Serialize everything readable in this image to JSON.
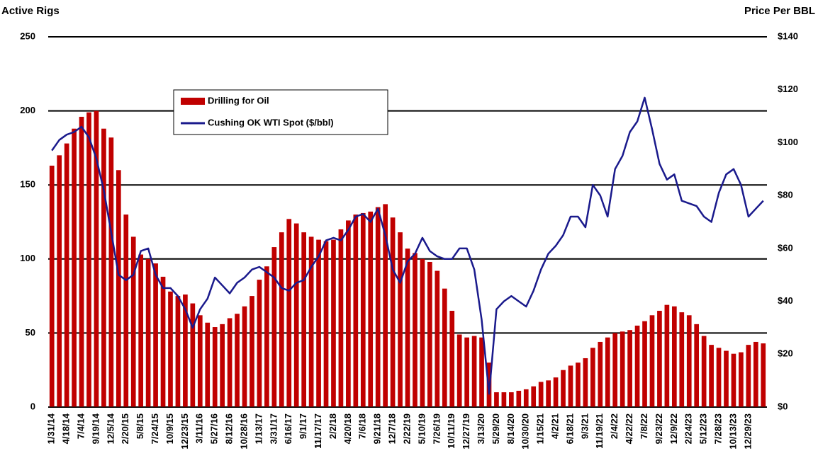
{
  "chart_data": {
    "type": "bar",
    "y_title": "Active Rigs",
    "y2_title": "Price Per BBL",
    "categories": [
      "1/31/14",
      null,
      "4/18/14",
      null,
      "7/4/14",
      null,
      "9/19/14",
      null,
      "12/5/14",
      null,
      "2/20/15",
      null,
      "5/8/15",
      null,
      "7/24/15",
      null,
      "10/9/15",
      null,
      "12/23/15",
      null,
      "3/11/16",
      null,
      "5/27/16",
      null,
      "8/12/16",
      null,
      "10/28/16",
      null,
      "1/13/17",
      null,
      "3/31/17",
      null,
      "6/16/17",
      null,
      "9/1/17",
      null,
      "11/17/17",
      null,
      "2/2/18",
      null,
      "4/20/18",
      null,
      "7/6/18",
      null,
      "9/21/18",
      null,
      "12/7/18",
      null,
      "2/22/19",
      null,
      "5/10/19",
      null,
      "7/26/19",
      null,
      "10/11/19",
      null,
      "12/27/19",
      null,
      "3/13/20",
      null,
      "5/29/20",
      null,
      "8/14/20",
      null,
      "10/30/20",
      null,
      "1/15/21",
      null,
      "4/2/21",
      null,
      "6/18/21",
      null,
      "9/3/21",
      null,
      "11/19/21",
      null,
      "2/4/22",
      null,
      "4/22/22",
      null,
      "7/8/22",
      null,
      "9/23/22",
      null,
      "12/9/22",
      null,
      "2/24/23",
      null,
      "5/12/23",
      null,
      "7/28/23",
      null,
      "10/13/23",
      null,
      "12/29/23",
      null,
      null
    ],
    "series": [
      {
        "name": "Drilling for Oil",
        "color": "#c00000",
        "type": "bar",
        "values": [
          163,
          170,
          178,
          188,
          196,
          199,
          200,
          188,
          182,
          160,
          130,
          115,
          103,
          100,
          97,
          88,
          78,
          75,
          76,
          70,
          62,
          57,
          54,
          56,
          60,
          63,
          68,
          75,
          86,
          95,
          108,
          118,
          127,
          124,
          118,
          115,
          113,
          112,
          113,
          120,
          126,
          130,
          131,
          132,
          135,
          137,
          128,
          118,
          107,
          104,
          100,
          98,
          92,
          80,
          65,
          49,
          47,
          48,
          47,
          30,
          10,
          10,
          10,
          11,
          12,
          14,
          17,
          18,
          20,
          25,
          28,
          30,
          33,
          40,
          44,
          47,
          50,
          51,
          52,
          55,
          58,
          62,
          65,
          69,
          68,
          64,
          62,
          56,
          48,
          42,
          40,
          38,
          36,
          37,
          42,
          44,
          43
        ]
      },
      {
        "name": "Cushing OK WTI Spot ($/bbl)",
        "color": "#1a1a8c",
        "type": "line",
        "axis": "y2",
        "values": [
          97,
          101,
          103,
          104,
          106,
          102,
          94,
          82,
          66,
          50,
          48,
          50,
          59,
          60,
          50,
          45,
          45,
          42,
          37,
          30,
          37,
          41,
          49,
          46,
          43,
          47,
          49,
          52,
          53,
          51,
          49,
          45,
          44,
          47,
          48,
          53,
          57,
          63,
          64,
          63,
          67,
          72,
          73,
          70,
          75,
          65,
          52,
          47,
          55,
          58,
          64,
          59,
          57,
          56,
          56,
          60,
          60,
          52,
          33,
          5,
          37,
          40,
          42,
          40,
          38,
          44,
          52,
          58,
          61,
          65,
          72,
          72,
          68,
          84,
          80,
          72,
          90,
          95,
          104,
          108,
          117,
          105,
          92,
          86,
          88,
          78,
          77,
          76,
          72,
          70,
          81,
          88,
          90,
          84,
          72,
          75,
          78
        ]
      }
    ],
    "ylim": [
      0,
      250
    ],
    "yticks": [
      0,
      50,
      100,
      150,
      200,
      250
    ],
    "y2lim": [
      0,
      140
    ],
    "y2ticks": [
      {
        "value": 0,
        "label": "$0"
      },
      {
        "value": 20,
        "label": "$20"
      },
      {
        "value": 40,
        "label": "$40"
      },
      {
        "value": 60,
        "label": "$60"
      },
      {
        "value": 80,
        "label": "$80"
      },
      {
        "value": 100,
        "label": "$100"
      },
      {
        "value": 120,
        "label": "$120"
      },
      {
        "value": 140,
        "label": "$140"
      }
    ],
    "grid": true
  }
}
